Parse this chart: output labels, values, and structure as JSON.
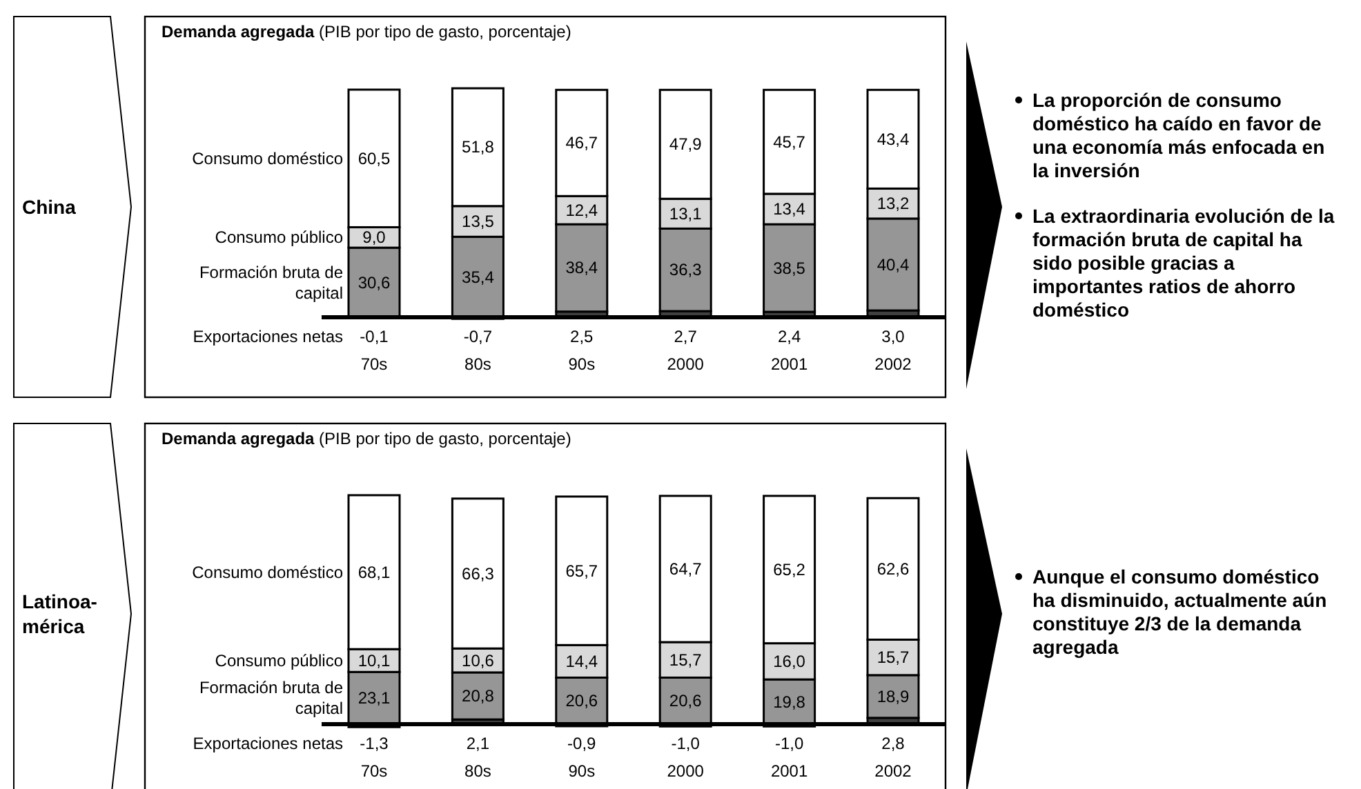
{
  "chart_data": [
    {
      "type": "bar",
      "stacked": true,
      "title": "Demanda agregada",
      "subtitle": "(PIB por tipo de gasto, porcentaje)",
      "categories": [
        "70s",
        "80s",
        "90s",
        "2000",
        "2001",
        "2002"
      ],
      "series": [
        {
          "name": "Exportaciones netas",
          "color": "#404040",
          "values": [
            -0.1,
            -0.7,
            2.5,
            2.7,
            2.4,
            3.0
          ],
          "value_labels": [
            "-0,1",
            "-0,7",
            "2,5",
            "2,7",
            "2,4",
            "3,0"
          ]
        },
        {
          "name": "Formación bruta de capital",
          "color": "#969696",
          "values": [
            30.6,
            35.4,
            38.4,
            36.3,
            38.5,
            40.4
          ],
          "value_labels": [
            "30,6",
            "35,4",
            "38,4",
            "36,3",
            "38,5",
            "40,4"
          ]
        },
        {
          "name": "Consumo público",
          "color": "#d9d9d9",
          "values": [
            9.0,
            13.5,
            12.4,
            13.1,
            13.4,
            13.2
          ],
          "value_labels": [
            "9,0",
            "13,5",
            "12,4",
            "13,1",
            "13,4",
            "13,2"
          ]
        },
        {
          "name": "Consumo doméstico",
          "color": "#ffffff",
          "values": [
            60.5,
            51.8,
            46.7,
            47.9,
            45.7,
            43.4
          ],
          "value_labels": [
            "60,5",
            "51,8",
            "46,7",
            "47,9",
            "45,7",
            "43,4"
          ]
        }
      ],
      "annotations": [
        "China",
        "La proporción de consumo doméstico ha caído en favor de una economía más enfocada en la inversión",
        "La extraordinaria evolución de la formación bruta de capital ha sido posible gracias a importantes ratios de ahorro doméstico"
      ]
    },
    {
      "type": "bar",
      "stacked": true,
      "title": "Demanda agregada",
      "subtitle": "(PIB por tipo de gasto, porcentaje)",
      "categories": [
        "70s",
        "80s",
        "90s",
        "2000",
        "2001",
        "2002"
      ],
      "series": [
        {
          "name": "Exportaciones netas",
          "color": "#404040",
          "values": [
            -1.3,
            2.1,
            -0.9,
            -1.0,
            -1.0,
            2.8
          ],
          "value_labels": [
            "-1,3",
            "2,1",
            "-0,9",
            "-1,0",
            "-1,0",
            "2,8"
          ]
        },
        {
          "name": "Formación bruta de capital",
          "color": "#969696",
          "values": [
            23.1,
            20.8,
            20.6,
            20.6,
            19.8,
            18.9
          ],
          "value_labels": [
            "23,1",
            "20,8",
            "20,6",
            "20,6",
            "19,8",
            "18,9"
          ]
        },
        {
          "name": "Consumo público",
          "color": "#d9d9d9",
          "values": [
            10.1,
            10.6,
            14.4,
            15.7,
            16.0,
            15.7
          ],
          "value_labels": [
            "10,1",
            "10,6",
            "14,4",
            "15,7",
            "16,0",
            "15,7"
          ]
        },
        {
          "name": "Consumo doméstico",
          "color": "#ffffff",
          "values": [
            68.1,
            66.3,
            65.7,
            64.7,
            65.2,
            62.6
          ],
          "value_labels": [
            "68,1",
            "66,3",
            "65,7",
            "64,7",
            "65,2",
            "62,6"
          ]
        }
      ],
      "annotations": [
        "Latinoa-mérica",
        "Aunque el consumo doméstico ha disminuido, actualmente aún constituye 2/3 de la demanda agregada"
      ]
    }
  ]
}
